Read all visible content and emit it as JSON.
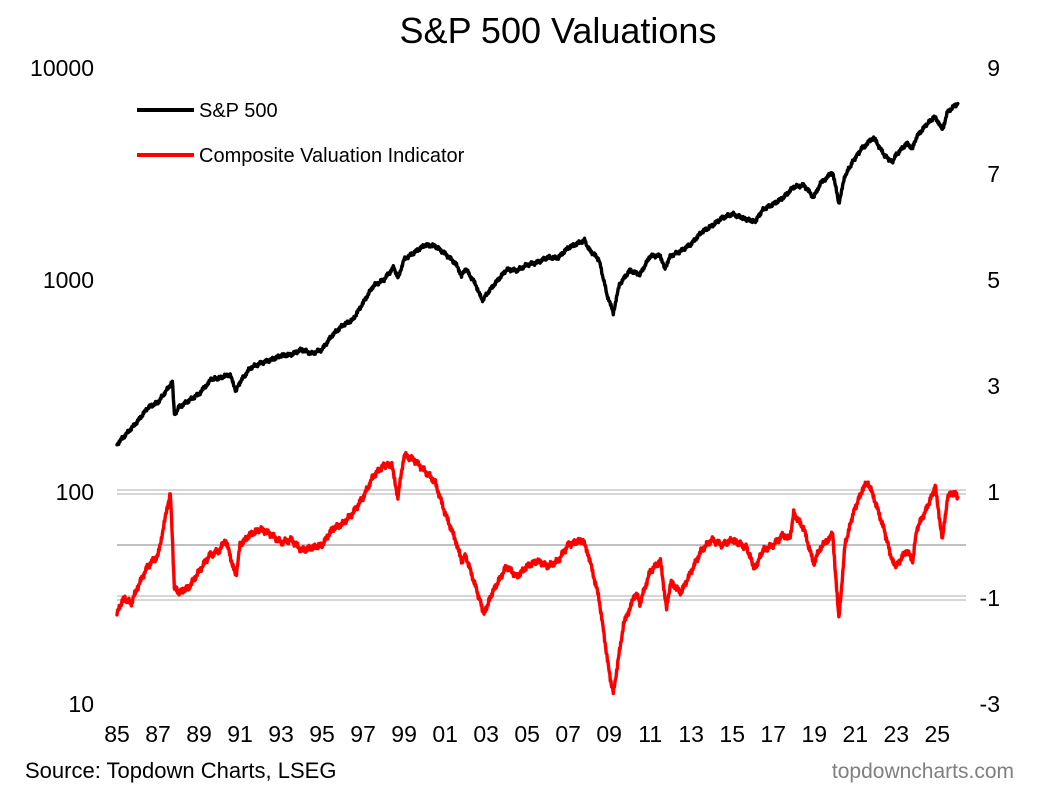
{
  "chart_data": {
    "type": "line",
    "title": "S&P 500 Valuations",
    "xlabel": "",
    "ylabel_left": "",
    "ylabel_right": "",
    "x_tick_labels": [
      "85",
      "87",
      "89",
      "91",
      "93",
      "95",
      "97",
      "99",
      "01",
      "03",
      "05",
      "07",
      "09",
      "11",
      "13",
      "15",
      "17",
      "19",
      "21",
      "23",
      "25"
    ],
    "left_axis": {
      "scale": "log",
      "ylim": [
        10,
        10000
      ],
      "ticks": [
        "10",
        "100",
        "1000",
        "10000"
      ]
    },
    "right_axis": {
      "scale": "linear",
      "ylim": [
        -3,
        9
      ],
      "ticks": [
        "-3",
        "-1",
        "1",
        "3",
        "5",
        "7",
        "9"
      ]
    },
    "reference_lines_right_axis": [
      1,
      0,
      -1
    ],
    "legend_position": "top-left",
    "series": [
      {
        "name": "S&P 500",
        "axis": "left",
        "color": "#000000",
        "points": [
          [
            1985.0,
            168
          ],
          [
            1985.5,
            190
          ],
          [
            1986.0,
            215
          ],
          [
            1986.5,
            250
          ],
          [
            1987.0,
            265
          ],
          [
            1987.7,
            330
          ],
          [
            1987.8,
            230
          ],
          [
            1988.0,
            250
          ],
          [
            1988.5,
            270
          ],
          [
            1989.0,
            290
          ],
          [
            1989.6,
            340
          ],
          [
            1990.0,
            345
          ],
          [
            1990.5,
            360
          ],
          [
            1990.8,
            300
          ],
          [
            1991.0,
            330
          ],
          [
            1991.5,
            385
          ],
          [
            1992.0,
            405
          ],
          [
            1992.5,
            420
          ],
          [
            1993.0,
            440
          ],
          [
            1993.5,
            445
          ],
          [
            1994.0,
            470
          ],
          [
            1994.5,
            450
          ],
          [
            1995.0,
            470
          ],
          [
            1995.5,
            550
          ],
          [
            1996.0,
            610
          ],
          [
            1996.5,
            650
          ],
          [
            1997.0,
            780
          ],
          [
            1997.5,
            940
          ],
          [
            1998.0,
            1000
          ],
          [
            1998.5,
            1150
          ],
          [
            1998.7,
            1020
          ],
          [
            1999.0,
            1250
          ],
          [
            1999.5,
            1350
          ],
          [
            2000.0,
            1460
          ],
          [
            2000.5,
            1450
          ],
          [
            2001.0,
            1330
          ],
          [
            2001.5,
            1200
          ],
          [
            2001.8,
            1050
          ],
          [
            2002.0,
            1130
          ],
          [
            2002.5,
            950
          ],
          [
            2002.8,
            800
          ],
          [
            2003.0,
            850
          ],
          [
            2003.5,
            980
          ],
          [
            2004.0,
            1120
          ],
          [
            2004.5,
            1110
          ],
          [
            2005.0,
            1180
          ],
          [
            2005.5,
            1210
          ],
          [
            2006.0,
            1280
          ],
          [
            2006.5,
            1270
          ],
          [
            2007.0,
            1420
          ],
          [
            2007.8,
            1540
          ],
          [
            2008.0,
            1400
          ],
          [
            2008.5,
            1250
          ],
          [
            2008.9,
            850
          ],
          [
            2009.2,
            700
          ],
          [
            2009.5,
            950
          ],
          [
            2010.0,
            1110
          ],
          [
            2010.5,
            1060
          ],
          [
            2011.0,
            1300
          ],
          [
            2011.5,
            1300
          ],
          [
            2011.7,
            1130
          ],
          [
            2012.0,
            1300
          ],
          [
            2012.5,
            1370
          ],
          [
            2013.0,
            1480
          ],
          [
            2013.5,
            1680
          ],
          [
            2014.0,
            1800
          ],
          [
            2014.5,
            1960
          ],
          [
            2015.0,
            2050
          ],
          [
            2015.7,
            1930
          ],
          [
            2016.1,
            1880
          ],
          [
            2016.5,
            2150
          ],
          [
            2017.0,
            2280
          ],
          [
            2017.5,
            2450
          ],
          [
            2018.0,
            2750
          ],
          [
            2018.5,
            2800
          ],
          [
            2018.97,
            2450
          ],
          [
            2019.3,
            2850
          ],
          [
            2019.9,
            3230
          ],
          [
            2020.2,
            2300
          ],
          [
            2020.5,
            3100
          ],
          [
            2020.9,
            3650
          ],
          [
            2021.3,
            4150
          ],
          [
            2021.9,
            4700
          ],
          [
            2022.4,
            3900
          ],
          [
            2022.8,
            3600
          ],
          [
            2023.0,
            3900
          ],
          [
            2023.5,
            4400
          ],
          [
            2023.8,
            4200
          ],
          [
            2024.0,
            4750
          ],
          [
            2024.5,
            5450
          ],
          [
            2024.9,
            5900
          ],
          [
            2025.25,
            5100
          ],
          [
            2025.5,
            6200
          ],
          [
            2025.8,
            6600
          ],
          [
            2026.0,
            6800
          ]
        ]
      },
      {
        "name": "Composite Valuation Indicator",
        "axis": "right",
        "color": "#ff0000",
        "points": [
          [
            1985.0,
            -1.3
          ],
          [
            1985.3,
            -1.0
          ],
          [
            1985.7,
            -1.1
          ],
          [
            1986.0,
            -0.8
          ],
          [
            1986.5,
            -0.4
          ],
          [
            1987.0,
            -0.2
          ],
          [
            1987.6,
            1.0
          ],
          [
            1987.8,
            -0.8
          ],
          [
            1988.0,
            -0.9
          ],
          [
            1988.5,
            -0.8
          ],
          [
            1989.0,
            -0.5
          ],
          [
            1989.5,
            -0.2
          ],
          [
            1990.0,
            -0.1
          ],
          [
            1990.3,
            0.1
          ],
          [
            1990.8,
            -0.6
          ],
          [
            1991.0,
            0.0
          ],
          [
            1991.5,
            0.2
          ],
          [
            1992.0,
            0.3
          ],
          [
            1992.5,
            0.2
          ],
          [
            1993.0,
            0.05
          ],
          [
            1993.5,
            0.1
          ],
          [
            1994.0,
            -0.1
          ],
          [
            1994.5,
            -0.05
          ],
          [
            1995.0,
            0.0
          ],
          [
            1995.5,
            0.3
          ],
          [
            1996.0,
            0.4
          ],
          [
            1996.5,
            0.6
          ],
          [
            1997.0,
            0.9
          ],
          [
            1997.5,
            1.3
          ],
          [
            1998.0,
            1.5
          ],
          [
            1998.4,
            1.5
          ],
          [
            1998.7,
            0.9
          ],
          [
            1999.0,
            1.7
          ],
          [
            1999.5,
            1.6
          ],
          [
            2000.0,
            1.4
          ],
          [
            2000.5,
            1.2
          ],
          [
            2001.0,
            0.6
          ],
          [
            2001.5,
            0.1
          ],
          [
            2001.8,
            -0.3
          ],
          [
            2002.0,
            -0.2
          ],
          [
            2002.5,
            -0.8
          ],
          [
            2002.9,
            -1.3
          ],
          [
            2003.3,
            -0.9
          ],
          [
            2004.0,
            -0.4
          ],
          [
            2004.5,
            -0.6
          ],
          [
            2005.0,
            -0.4
          ],
          [
            2005.5,
            -0.3
          ],
          [
            2006.0,
            -0.4
          ],
          [
            2006.5,
            -0.3
          ],
          [
            2007.0,
            0.0
          ],
          [
            2007.7,
            0.1
          ],
          [
            2008.0,
            -0.2
          ],
          [
            2008.5,
            -1.0
          ],
          [
            2009.0,
            -2.4
          ],
          [
            2009.2,
            -2.8
          ],
          [
            2009.7,
            -1.5
          ],
          [
            2010.3,
            -0.9
          ],
          [
            2010.5,
            -1.1
          ],
          [
            2011.0,
            -0.5
          ],
          [
            2011.5,
            -0.3
          ],
          [
            2011.8,
            -1.2
          ],
          [
            2012.0,
            -0.7
          ],
          [
            2012.5,
            -0.9
          ],
          [
            2013.0,
            -0.5
          ],
          [
            2013.5,
            -0.1
          ],
          [
            2014.0,
            0.1
          ],
          [
            2014.5,
            0.0
          ],
          [
            2015.0,
            0.1
          ],
          [
            2015.7,
            -0.05
          ],
          [
            2016.1,
            -0.45
          ],
          [
            2016.5,
            -0.1
          ],
          [
            2017.0,
            0.0
          ],
          [
            2017.5,
            0.2
          ],
          [
            2017.8,
            0.1
          ],
          [
            2018.0,
            0.6
          ],
          [
            2018.5,
            0.3
          ],
          [
            2018.97,
            -0.35
          ],
          [
            2019.3,
            -0.05
          ],
          [
            2019.9,
            0.2
          ],
          [
            2020.2,
            -1.4
          ],
          [
            2020.5,
            0.0
          ],
          [
            2020.9,
            0.6
          ],
          [
            2021.3,
            1.0
          ],
          [
            2021.6,
            1.2
          ],
          [
            2021.9,
            0.9
          ],
          [
            2022.4,
            0.3
          ],
          [
            2022.8,
            -0.3
          ],
          [
            2023.0,
            -0.4
          ],
          [
            2023.5,
            -0.1
          ],
          [
            2023.8,
            -0.3
          ],
          [
            2024.0,
            0.3
          ],
          [
            2024.5,
            0.7
          ],
          [
            2024.9,
            1.1
          ],
          [
            2025.25,
            0.1
          ],
          [
            2025.5,
            0.9
          ],
          [
            2025.8,
            1.0
          ],
          [
            2026.0,
            0.9
          ]
        ]
      }
    ]
  },
  "footer": {
    "source": "Source: Topdown Charts, LSEG",
    "brand": "topdowncharts.com"
  }
}
